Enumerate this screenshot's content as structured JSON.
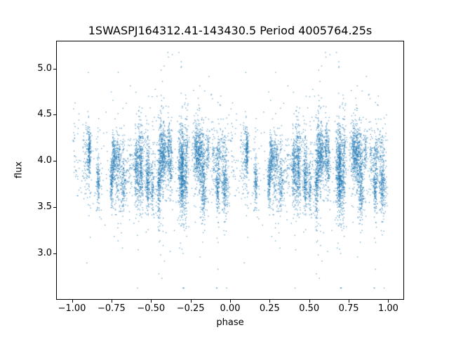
{
  "chart_data": {
    "type": "scatter",
    "title": "1SWASPJ164312.41-143430.5 Period 4005764.25s",
    "xlabel": "phase",
    "ylabel": "flux",
    "xlim": [
      -1.1,
      1.1
    ],
    "ylim": [
      2.5,
      5.3
    ],
    "xticks": [
      -1.0,
      -0.75,
      -0.5,
      -0.25,
      0.0,
      0.25,
      0.5,
      0.75,
      1.0
    ],
    "xtick_labels": [
      "−1.00",
      "−0.75",
      "−0.50",
      "−0.25",
      "0.00",
      "0.25",
      "0.50",
      "0.75",
      "1.00"
    ],
    "yticks": [
      3.0,
      3.5,
      4.0,
      4.5,
      5.0
    ],
    "ytick_labels": [
      "3.0",
      "3.5",
      "4.0",
      "4.5",
      "5.0"
    ],
    "grid": false,
    "legend": null,
    "marker_color": "#1f77b4",
    "marker_size_px": 1.3,
    "marker_alpha": 0.7,
    "series_description": "Folded photometric light curve: one dense point cloud repeated over phase [-1,0) and [0,1), composed of narrow vertical stripes of points",
    "y_summary": {
      "mean": 3.92,
      "typical_range": [
        3.4,
        4.4
      ],
      "min": 2.62,
      "max": 5.18
    },
    "generation": {
      "seed": 7,
      "n_points_per_half": 5500,
      "n_clusters": 60,
      "uniform_fraction": 0.07,
      "uniform_y_sigma": 0.3,
      "cluster_y_mean_base": 3.92,
      "cluster_y_mean_spread": 0.45,
      "cluster_y_sigma_min": 0.1,
      "cluster_y_sigma_spread": 0.15,
      "cluster_x_sigma_min": 0.003,
      "cluster_x_sigma_spread": 0.009,
      "outlier_fraction": 0.05,
      "outlier_extra_sigma": 0.5,
      "y_clip": [
        2.62,
        5.18
      ]
    }
  }
}
